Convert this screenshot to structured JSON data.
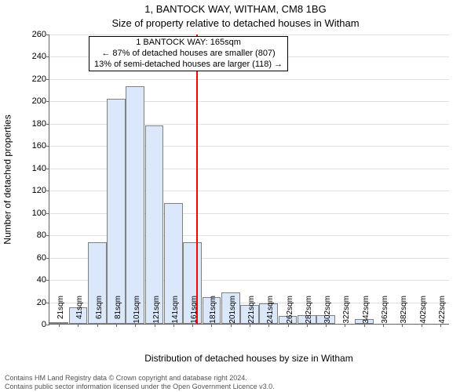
{
  "title_line1": "1, BANTOCK WAY, WITHAM, CM8 1BG",
  "title_line2": "Size of property relative to detached houses in Witham",
  "ylabel": "Number of detached properties",
  "xlabel": "Distribution of detached houses by size in Witham",
  "chart": {
    "type": "histogram",
    "ylim": [
      0,
      260
    ],
    "ytick_step": 20,
    "background_color": "#ffffff",
    "grid_color": "#e0e0e0",
    "axis_color": "#666666",
    "bar_fill": "#dbe7fb",
    "bar_stroke": "#808080",
    "marker_color": "#ff0000",
    "marker_xvalue": 165,
    "title_fontsize": 13,
    "label_fontsize": 12,
    "tick_fontsize": 11,
    "categories": [
      "21sqm",
      "41sqm",
      "61sqm",
      "81sqm",
      "101sqm",
      "121sqm",
      "141sqm",
      "161sqm",
      "181sqm",
      "201sqm",
      "221sqm",
      "241sqm",
      "262sqm",
      "282sqm",
      "302sqm",
      "322sqm",
      "342sqm",
      "362sqm",
      "382sqm",
      "402sqm",
      "422sqm"
    ],
    "values": [
      1,
      15,
      73,
      202,
      213,
      178,
      108,
      73,
      24,
      28,
      17,
      18,
      7,
      8,
      8,
      0,
      4,
      0,
      0,
      0,
      0
    ]
  },
  "annotation": {
    "line1": "1 BANTOCK WAY: 165sqm",
    "line2": "← 87% of detached houses are smaller (807)",
    "line3": "13% of semi-detached houses are larger (118) →"
  },
  "footer": {
    "line1": "Contains HM Land Registry data © Crown copyright and database right 2024.",
    "line2": "Contains public sector information licensed under the Open Government Licence v3.0."
  }
}
